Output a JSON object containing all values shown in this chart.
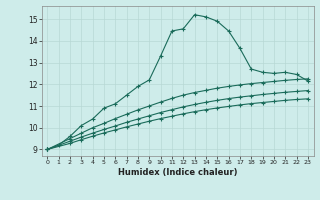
{
  "xlabel": "Humidex (Indice chaleur)",
  "bg_color": "#ceecea",
  "grid_color": "#b8d8d5",
  "line_color": "#1a6b5a",
  "xlim": [
    -0.5,
    23.5
  ],
  "ylim": [
    8.7,
    15.6
  ],
  "yticks": [
    9,
    10,
    11,
    12,
    13,
    14,
    15
  ],
  "xticks": [
    0,
    1,
    2,
    3,
    4,
    5,
    6,
    7,
    8,
    9,
    10,
    11,
    12,
    13,
    14,
    15,
    16,
    17,
    18,
    19,
    20,
    21,
    22,
    23
  ],
  "curve1_x": [
    0,
    1,
    2,
    3,
    4,
    5,
    6,
    7,
    8,
    9,
    10,
    11,
    12,
    13,
    14,
    15,
    16,
    17,
    18,
    19,
    20,
    21,
    22,
    23
  ],
  "curve1_y": [
    9.0,
    9.2,
    9.6,
    10.1,
    10.4,
    10.9,
    11.1,
    11.5,
    11.9,
    12.2,
    13.3,
    14.45,
    14.55,
    15.2,
    15.1,
    14.9,
    14.45,
    13.65,
    12.7,
    12.55,
    12.5,
    12.55,
    12.45,
    12.15
  ],
  "curve2_x": [
    0,
    2,
    3,
    4,
    5,
    6,
    7,
    8,
    9,
    10,
    11,
    12,
    13,
    14,
    15,
    16,
    17,
    18,
    19,
    20,
    21,
    22,
    23
  ],
  "curve2_y": [
    9.0,
    9.5,
    9.75,
    10.0,
    10.2,
    10.42,
    10.62,
    10.82,
    11.0,
    11.18,
    11.35,
    11.5,
    11.62,
    11.72,
    11.82,
    11.9,
    11.97,
    12.03,
    12.08,
    12.13,
    12.18,
    12.22,
    12.25
  ],
  "curve3_x": [
    0,
    2,
    3,
    4,
    5,
    6,
    7,
    8,
    9,
    10,
    11,
    12,
    13,
    14,
    15,
    16,
    17,
    18,
    19,
    20,
    21,
    22,
    23
  ],
  "curve3_y": [
    9.0,
    9.38,
    9.57,
    9.75,
    9.92,
    10.08,
    10.25,
    10.4,
    10.55,
    10.7,
    10.83,
    10.96,
    11.07,
    11.17,
    11.26,
    11.34,
    11.41,
    11.47,
    11.53,
    11.58,
    11.63,
    11.67,
    11.71
  ],
  "curve4_x": [
    0,
    2,
    3,
    4,
    5,
    6,
    7,
    8,
    9,
    10,
    11,
    12,
    13,
    14,
    15,
    16,
    17,
    18,
    19,
    20,
    21,
    22,
    23
  ],
  "curve4_y": [
    9.0,
    9.28,
    9.45,
    9.61,
    9.76,
    9.9,
    10.04,
    10.17,
    10.3,
    10.42,
    10.53,
    10.64,
    10.74,
    10.83,
    10.91,
    10.98,
    11.05,
    11.11,
    11.16,
    11.21,
    11.26,
    11.3,
    11.33
  ]
}
